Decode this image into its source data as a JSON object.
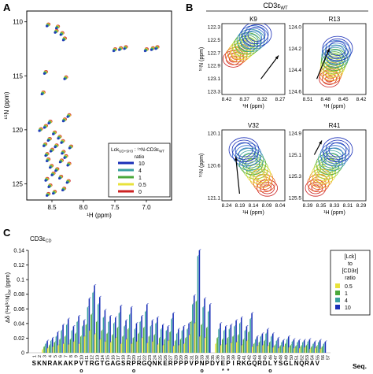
{
  "panels": {
    "A": {
      "letter": "A",
      "xlabel": "¹H (ppm)",
      "ylabel": "¹⁵N (ppm)",
      "legend_title_1": "Lck",
      "legend_title_1_sub": "UD+SH3",
      "legend_title_2": " : ¹⁵N-CD3ε",
      "legend_title_2_sub": "WT",
      "legend_ratio_label": "ratio",
      "legend": [
        {
          "label": "10",
          "color": "#1a2fb8"
        },
        {
          "label": "4",
          "color": "#3aa0a0"
        },
        {
          "label": "1",
          "color": "#4aa83a"
        },
        {
          "label": "0.5",
          "color": "#e8e23a"
        },
        {
          "label": "0",
          "color": "#cc2222"
        }
      ]
    },
    "B": {
      "letter": "B",
      "header": "CD3ε",
      "header_sub": "WT",
      "insets": [
        {
          "title": "K9",
          "xticks": [
            "8.42",
            "8.37",
            "8.32",
            "8.27"
          ],
          "yticks": [
            "122.3",
            "122.5",
            "122.7",
            "122.9",
            "123.1",
            "123.3"
          ],
          "ylabel": "¹⁵N (ppm)"
        },
        {
          "title": "R13",
          "xticks": [
            "8.51",
            "8.48",
            "8.45",
            "8.42"
          ],
          "yticks": [
            "124.0",
            "124.2",
            "124.4",
            "124.6"
          ],
          "ylabel": ""
        },
        {
          "title": "V32",
          "xticks": [
            "8.24",
            "8.19",
            "8.14",
            "8.09",
            "8.04"
          ],
          "yticks": [
            "120.1",
            "120.6",
            "121.1"
          ],
          "ylabel": "¹⁵N (ppm)"
        },
        {
          "title": "R41",
          "xticks": [
            "8.39",
            "8.35",
            "8.33",
            "8.31",
            "8.29"
          ],
          "yticks": [
            "124.9",
            "125.1",
            "125.3",
            "125.5"
          ],
          "ylabel": ""
        }
      ],
      "xlabel": "¹H (ppm)"
    },
    "C": {
      "letter": "C",
      "title": "CD3ε",
      "title_sub": "CD",
      "ylabel": "Δδ (¹H/¹⁵N)",
      "ylabel_sub": "av",
      "ylabel_unit": " (ppm)",
      "seq_label": "Seq.",
      "legend_title": "[Lck]\nto\n[CD3ε]\nratio",
      "markers": [
        {
          "residue": 10,
          "symbol": "o"
        },
        {
          "residue": 20,
          "symbol": "o"
        },
        {
          "residue": 33,
          "symbol": "o"
        },
        {
          "residue": 37,
          "symbol": "*"
        },
        {
          "residue": 38,
          "symbol": "*"
        },
        {
          "residue": 46,
          "symbol": "o"
        }
      ]
    }
  },
  "chart_data": [
    {
      "type": "scatter",
      "panel": "A",
      "xlabel": "¹H (ppm)",
      "ylabel": "¹⁵N (ppm)",
      "xlim": [
        8.9,
        6.6
      ],
      "ylim": [
        109,
        126.5
      ],
      "xticks": [
        8.5,
        8.0,
        7.5,
        7.0
      ],
      "xtick_labels": [
        "8.5",
        "8.0",
        "7.5",
        "7.0"
      ],
      "yticks": [
        110,
        115,
        120,
        125
      ],
      "ytick_labels": [
        "110",
        "115",
        "120",
        "125"
      ],
      "peaks": [
        [
          8.58,
          110.4
        ],
        [
          8.43,
          110.6
        ],
        [
          8.45,
          111.0
        ],
        [
          8.36,
          111.2
        ],
        [
          8.32,
          111.7
        ],
        [
          7.52,
          112.7
        ],
        [
          7.43,
          112.6
        ],
        [
          7.35,
          112.5
        ],
        [
          7.02,
          112.7
        ],
        [
          6.92,
          112.6
        ],
        [
          6.85,
          112.5
        ],
        [
          8.62,
          114.8
        ],
        [
          8.66,
          116.7
        ],
        [
          8.3,
          115.3
        ],
        [
          8.25,
          118.8
        ],
        [
          8.32,
          119.2
        ],
        [
          8.55,
          119.4
        ],
        [
          8.62,
          119.8
        ],
        [
          8.7,
          120.1
        ],
        [
          8.48,
          120.4
        ],
        [
          8.4,
          120.8
        ],
        [
          8.56,
          121.0
        ],
        [
          8.35,
          121.2
        ],
        [
          8.63,
          121.5
        ],
        [
          8.45,
          121.6
        ],
        [
          8.22,
          121.7
        ],
        [
          8.52,
          122.0
        ],
        [
          8.34,
          122.2
        ],
        [
          8.6,
          122.4
        ],
        [
          8.3,
          122.6
        ],
        [
          8.58,
          122.9
        ],
        [
          8.37,
          123.0
        ],
        [
          8.25,
          123.3
        ],
        [
          8.53,
          123.5
        ],
        [
          8.44,
          123.8
        ],
        [
          8.5,
          124.2
        ],
        [
          8.38,
          124.5
        ],
        [
          8.6,
          124.7
        ],
        [
          8.26,
          124.9
        ],
        [
          8.55,
          125.3
        ],
        [
          8.33,
          125.6
        ],
        [
          8.48,
          125.9
        ],
        [
          8.58,
          126.1
        ]
      ],
      "series": [
        {
          "name": "10",
          "color": "#1a2fb8"
        },
        {
          "name": "4",
          "color": "#3aa0a0"
        },
        {
          "name": "1",
          "color": "#4aa83a"
        },
        {
          "name": "0.5",
          "color": "#e8e23a"
        },
        {
          "name": "0",
          "color": "#cc2222"
        }
      ]
    },
    {
      "type": "bar",
      "panel": "C",
      "ylabel": "Δδ (¹H/¹⁵N)av (ppm)",
      "ylim": [
        0,
        0.14
      ],
      "yticks": [
        0,
        0.02,
        0.04,
        0.06,
        0.08,
        0.1,
        0.12,
        0.14
      ],
      "ytick_labels": [
        "0",
        "0.02",
        "0.04",
        "0.06",
        "0.08",
        "0.1",
        "0.12",
        "0.14"
      ],
      "categories": [
        "1",
        "2",
        "3",
        "4",
        "5",
        "6",
        "7",
        "8",
        "9",
        "10",
        "11",
        "12",
        "13",
        "14",
        "15",
        "16",
        "17",
        "18",
        "19",
        "20",
        "21",
        "22",
        "23",
        "24",
        "25",
        "26",
        "27",
        "28",
        "29",
        "30",
        "31",
        "32",
        "33",
        "34",
        "35",
        "36",
        "37",
        "38",
        "39",
        "40",
        "41",
        "42",
        "43",
        "44",
        "45",
        "46",
        "47",
        "48",
        "49",
        "50",
        "51",
        "52",
        "53",
        "54",
        "55",
        "56",
        "57"
      ],
      "sequence": [
        "S",
        "K",
        "N",
        "R",
        "A",
        "K",
        "A",
        "K",
        "P",
        "V",
        "T",
        "R",
        "G",
        "T",
        "G",
        "A",
        "G",
        "S",
        "R",
        "P",
        "R",
        "G",
        "Q",
        "N",
        "K",
        "E",
        "R",
        "P",
        "P",
        "P",
        "V",
        "P",
        "N",
        "P",
        "D",
        "Y",
        "E",
        "P",
        "I",
        "R",
        "K",
        "G",
        "Q",
        "R",
        "D",
        "L",
        "Y",
        "S",
        "G",
        "L",
        "N",
        "Q",
        "R",
        "A",
        "V",
        "",
        ""
      ],
      "series": [
        {
          "name": "0.5",
          "color": "#e8e23a",
          "values": [
            0,
            0,
            0.004,
            0.006,
            0.008,
            0.01,
            0.012,
            0.011,
            0.015,
            0.012,
            0.022,
            0.03,
            0.025,
            0.018,
            0.015,
            0.014,
            0.02,
            0.012,
            0.018,
            0.012,
            0.015,
            0.02,
            0.013,
            0.015,
            0.011,
            0.01,
            0.016,
            0.009,
            0.01,
            0.012,
            0.024,
            0.04,
            0.022,
            0.02,
            0.0,
            0.012,
            0.01,
            0.011,
            0.013,
            0.014,
            0.01,
            0.016,
            0.008,
            0.009,
            0.01,
            0.009,
            0.007,
            0.006,
            0.008,
            0.007,
            0.006,
            0.006,
            0.007,
            0.005,
            0.006,
            0.005,
            0
          ]
        },
        {
          "name": "1",
          "color": "#4aa83a",
          "values": [
            0,
            0,
            0.008,
            0.01,
            0.014,
            0.018,
            0.022,
            0.018,
            0.026,
            0.022,
            0.038,
            0.052,
            0.042,
            0.03,
            0.026,
            0.024,
            0.034,
            0.022,
            0.032,
            0.02,
            0.026,
            0.034,
            0.022,
            0.024,
            0.02,
            0.018,
            0.028,
            0.016,
            0.018,
            0.02,
            0.042,
            0.07,
            0.038,
            0.034,
            0.0,
            0.02,
            0.018,
            0.02,
            0.022,
            0.024,
            0.018,
            0.028,
            0.012,
            0.014,
            0.016,
            0.014,
            0.01,
            0.009,
            0.012,
            0.01,
            0.009,
            0.009,
            0.01,
            0.008,
            0.009,
            0.008,
            0
          ]
        },
        {
          "name": "4",
          "color": "#3aa0a0",
          "values": [
            0,
            0,
            0.012,
            0.016,
            0.022,
            0.03,
            0.038,
            0.03,
            0.042,
            0.036,
            0.062,
            0.082,
            0.066,
            0.048,
            0.042,
            0.04,
            0.054,
            0.036,
            0.052,
            0.032,
            0.042,
            0.056,
            0.036,
            0.04,
            0.032,
            0.03,
            0.046,
            0.026,
            0.03,
            0.032,
            0.066,
            0.132,
            0.062,
            0.056,
            0.0,
            0.032,
            0.03,
            0.032,
            0.036,
            0.04,
            0.03,
            0.046,
            0.018,
            0.022,
            0.026,
            0.022,
            0.016,
            0.014,
            0.018,
            0.015,
            0.014,
            0.014,
            0.015,
            0.012,
            0.014,
            0.012,
            0
          ]
        },
        {
          "name": "10",
          "color": "#1a2fb8",
          "values": [
            0,
            0,
            0.016,
            0.02,
            0.028,
            0.038,
            0.046,
            0.036,
            0.05,
            0.044,
            0.074,
            0.092,
            0.076,
            0.058,
            0.05,
            0.048,
            0.064,
            0.044,
            0.062,
            0.04,
            0.05,
            0.066,
            0.044,
            0.048,
            0.038,
            0.036,
            0.054,
            0.032,
            0.036,
            0.04,
            0.078,
            0.14,
            0.074,
            0.066,
            0.0,
            0.04,
            0.036,
            0.038,
            0.044,
            0.048,
            0.036,
            0.054,
            0.022,
            0.026,
            0.032,
            0.026,
            0.02,
            0.017,
            0.022,
            0.018,
            0.017,
            0.017,
            0.018,
            0.015,
            0.017,
            0.015,
            0
          ]
        }
      ]
    }
  ]
}
